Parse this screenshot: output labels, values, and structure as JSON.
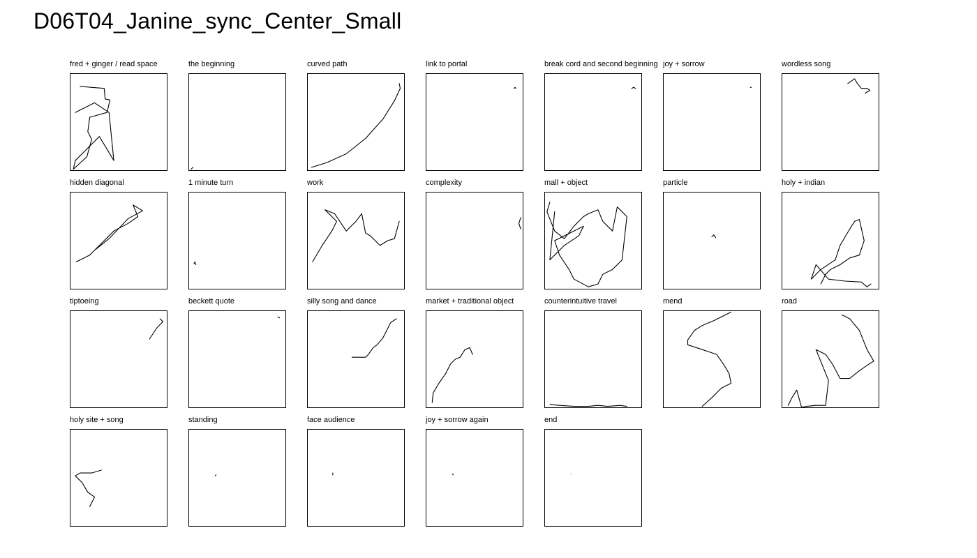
{
  "title": "D06T04_Janine_sync_Center_Small",
  "chart_data": [
    {
      "type": "line",
      "title": "fred + ginger / read space",
      "x": [
        0.1,
        0.35,
        0.36,
        0.41,
        0.38,
        0.2,
        0.18,
        0.22,
        0.17,
        0.03,
        0.05,
        0.2,
        0.3,
        0.45,
        0.4,
        0.25,
        0.05
      ],
      "y": [
        0.87,
        0.85,
        0.74,
        0.73,
        0.6,
        0.55,
        0.4,
        0.32,
        0.14,
        0.01,
        0.1,
        0.25,
        0.35,
        0.1,
        0.6,
        0.7,
        0.6
      ]
    },
    {
      "type": "line",
      "title": "the beginning",
      "x": [
        0.02,
        0.04
      ],
      "y": [
        0.01,
        0.03
      ]
    },
    {
      "type": "line",
      "title": "curved path",
      "x": [
        0.04,
        0.2,
        0.4,
        0.6,
        0.78,
        0.9,
        0.96,
        0.95
      ],
      "y": [
        0.03,
        0.08,
        0.17,
        0.33,
        0.53,
        0.72,
        0.85,
        0.9
      ]
    },
    {
      "type": "line",
      "title": "link to portal",
      "x": [
        0.91,
        0.92,
        0.93
      ],
      "y": [
        0.85,
        0.86,
        0.85
      ]
    },
    {
      "type": "line",
      "title": "break cord and second beginning",
      "x": [
        0.9,
        0.92,
        0.94
      ],
      "y": [
        0.85,
        0.86,
        0.85
      ]
    },
    {
      "type": "line",
      "title": "joy + sorrow",
      "x": [
        0.9,
        0.91
      ],
      "y": [
        0.86,
        0.86
      ]
    },
    {
      "type": "line",
      "title": "wordless song",
      "x": [
        0.68,
        0.75,
        0.78,
        0.82,
        0.88,
        0.91,
        0.86
      ],
      "y": [
        0.9,
        0.95,
        0.9,
        0.85,
        0.85,
        0.83,
        0.8
      ]
    },
    {
      "type": "line",
      "title": "hidden diagonal",
      "x": [
        0.06,
        0.2,
        0.3,
        0.45,
        0.6,
        0.7,
        0.65,
        0.75,
        0.6,
        0.4,
        0.25
      ],
      "y": [
        0.28,
        0.35,
        0.45,
        0.6,
        0.68,
        0.75,
        0.87,
        0.81,
        0.73,
        0.52,
        0.4
      ]
    },
    {
      "type": "line",
      "title": "1 minute turn",
      "x": [
        0.05,
        0.06,
        0.07
      ],
      "y": [
        0.26,
        0.28,
        0.25
      ]
    },
    {
      "type": "line",
      "title": "work",
      "x": [
        0.05,
        0.15,
        0.25,
        0.3,
        0.18,
        0.28,
        0.4,
        0.5,
        0.56,
        0.6,
        0.65,
        0.75,
        0.83,
        0.9,
        0.95
      ],
      "y": [
        0.28,
        0.45,
        0.6,
        0.7,
        0.82,
        0.78,
        0.6,
        0.7,
        0.78,
        0.58,
        0.55,
        0.45,
        0.5,
        0.52,
        0.7
      ]
    },
    {
      "type": "line",
      "title": "complexity",
      "x": [
        0.98,
        0.96,
        0.98
      ],
      "y": [
        0.62,
        0.68,
        0.74
      ]
    },
    {
      "type": "line",
      "title": "mall + object",
      "x": [
        0.05,
        0.02,
        0.1,
        0.2,
        0.3,
        0.4,
        0.45,
        0.55,
        0.6,
        0.7,
        0.75,
        0.85,
        0.8,
        0.7,
        0.6,
        0.55,
        0.45,
        0.3,
        0.25,
        0.15,
        0.1,
        0.2,
        0.3,
        0.4,
        0.35,
        0.2,
        0.1,
        0.05,
        0.1
      ],
      "y": [
        0.9,
        0.8,
        0.6,
        0.52,
        0.65,
        0.75,
        0.78,
        0.82,
        0.7,
        0.6,
        0.85,
        0.75,
        0.3,
        0.2,
        0.15,
        0.05,
        0.02,
        0.1,
        0.2,
        0.35,
        0.5,
        0.55,
        0.6,
        0.65,
        0.55,
        0.45,
        0.35,
        0.3,
        0.8
      ]
    },
    {
      "type": "line",
      "title": "particle",
      "x": [
        0.5,
        0.52,
        0.54
      ],
      "y": [
        0.54,
        0.56,
        0.53
      ]
    },
    {
      "type": "line",
      "title": "holy + indian",
      "x": [
        0.4,
        0.45,
        0.5,
        0.6,
        0.7,
        0.8,
        0.85,
        0.8,
        0.75,
        0.7,
        0.6,
        0.55,
        0.4,
        0.3,
        0.35,
        0.48,
        0.65,
        0.82,
        0.88,
        0.92
      ],
      "y": [
        0.05,
        0.15,
        0.2,
        0.25,
        0.32,
        0.35,
        0.5,
        0.72,
        0.7,
        0.62,
        0.45,
        0.3,
        0.2,
        0.1,
        0.25,
        0.1,
        0.08,
        0.07,
        0.02,
        0.05
      ]
    },
    {
      "type": "line",
      "title": "tiptoeing",
      "x": [
        0.82,
        0.9,
        0.96,
        0.93
      ],
      "y": [
        0.71,
        0.83,
        0.89,
        0.92
      ]
    },
    {
      "type": "line",
      "title": "beckett quote",
      "x": [
        0.92,
        0.94
      ],
      "y": [
        0.94,
        0.93
      ]
    },
    {
      "type": "line",
      "title": "silly song and dance",
      "x": [
        0.46,
        0.6,
        0.63,
        0.68,
        0.72,
        0.78,
        0.82,
        0.86,
        0.92
      ],
      "y": [
        0.52,
        0.52,
        0.55,
        0.62,
        0.65,
        0.72,
        0.8,
        0.88,
        0.92
      ]
    },
    {
      "type": "line",
      "title": "market + traditional object",
      "x": [
        0.06,
        0.07,
        0.13,
        0.2,
        0.25,
        0.3,
        0.35,
        0.4,
        0.45,
        0.48
      ],
      "y": [
        0.05,
        0.15,
        0.25,
        0.35,
        0.45,
        0.5,
        0.52,
        0.6,
        0.62,
        0.55
      ]
    },
    {
      "type": "line",
      "title": "counterintuitive travel",
      "x": [
        0.05,
        0.15,
        0.3,
        0.45,
        0.55,
        0.65,
        0.78,
        0.85
      ],
      "y": [
        0.03,
        0.02,
        0.01,
        0.01,
        0.02,
        0.01,
        0.02,
        0.01
      ]
    },
    {
      "type": "line",
      "title": "mend",
      "x": [
        0.4,
        0.5,
        0.6,
        0.7,
        0.68,
        0.62,
        0.55,
        0.4,
        0.25,
        0.25,
        0.32,
        0.4,
        0.52,
        0.62,
        0.7
      ],
      "y": [
        0.01,
        0.1,
        0.2,
        0.25,
        0.35,
        0.45,
        0.55,
        0.6,
        0.65,
        0.7,
        0.8,
        0.85,
        0.9,
        0.95,
        0.99
      ]
    },
    {
      "type": "line",
      "title": "road",
      "x": [
        0.06,
        0.1,
        0.15,
        0.2,
        0.25,
        0.35,
        0.45,
        0.48,
        0.35,
        0.45,
        0.52,
        0.6,
        0.7,
        0.8,
        0.9,
        0.95,
        0.88,
        0.8,
        0.7,
        0.62
      ],
      "y": [
        0.02,
        0.1,
        0.18,
        0.0,
        0.01,
        0.02,
        0.02,
        0.28,
        0.6,
        0.55,
        0.45,
        0.3,
        0.3,
        0.38,
        0.45,
        0.48,
        0.6,
        0.8,
        0.92,
        0.96
      ]
    },
    {
      "type": "line",
      "title": "holy site + song",
      "x": [
        0.2,
        0.25,
        0.18,
        0.12,
        0.05,
        0.1,
        0.22,
        0.32
      ],
      "y": [
        0.2,
        0.3,
        0.35,
        0.45,
        0.52,
        0.55,
        0.55,
        0.58
      ]
    },
    {
      "type": "line",
      "title": "standing",
      "x": [
        0.27,
        0.28
      ],
      "y": [
        0.52,
        0.53
      ]
    },
    {
      "type": "line",
      "title": "face audience",
      "x": [
        0.26,
        0.26
      ],
      "y": [
        0.53,
        0.55
      ]
    },
    {
      "type": "line",
      "title": "joy + sorrow again",
      "x": [
        0.27,
        0.28
      ],
      "y": [
        0.54,
        0.53
      ]
    },
    {
      "type": "line",
      "title": "end",
      "x": [
        0.27,
        0.27
      ],
      "y": [
        0.54,
        0.54
      ]
    }
  ]
}
